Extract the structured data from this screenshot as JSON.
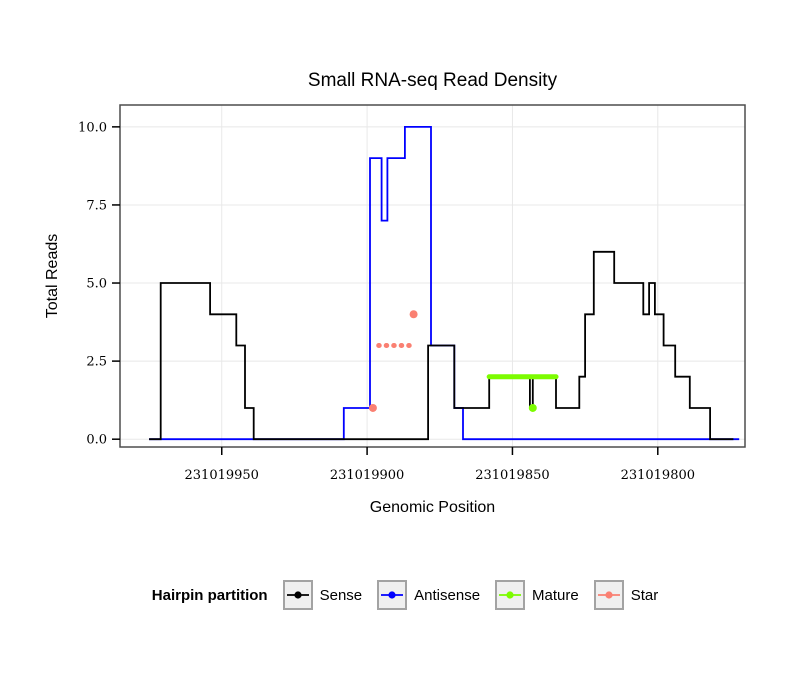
{
  "chart_data": {
    "type": "line",
    "title": "Small RNA-seq Read Density",
    "xlabel": "Genomic Position",
    "ylabel": "Total Reads",
    "x_axis_reversed": true,
    "xlim": [
      231019985,
      231019770
    ],
    "ylim": [
      -0.25,
      10.7
    ],
    "x_ticks": [
      231019950,
      231019900,
      231019850,
      231019800
    ],
    "x_tick_labels": [
      "231019950",
      "231019900",
      "231019850",
      "231019800"
    ],
    "y_ticks": [
      0.0,
      2.5,
      5.0,
      7.5,
      10.0
    ],
    "y_tick_labels": [
      "0.0",
      "2.5",
      "5.0",
      "7.5",
      "10.0"
    ],
    "grid": true,
    "legend_position": "bottom",
    "style": {
      "panel_fill": "#FFFFFF",
      "grid_color": "#E8E8E8",
      "panel_border": "#4D4D4D",
      "tick_color": "#000000"
    },
    "series": [
      {
        "name": "Antisense",
        "color": "#0000FF",
        "type": "step",
        "points": [
          [
            231019975,
            0
          ],
          [
            231019908,
            1
          ],
          [
            231019899,
            9
          ],
          [
            231019895,
            7
          ],
          [
            231019893,
            9
          ],
          [
            231019887,
            10
          ],
          [
            231019878,
            3
          ],
          [
            231019870,
            1
          ],
          [
            231019867,
            0
          ],
          [
            231019772,
            0
          ]
        ]
      },
      {
        "name": "Sense",
        "color": "#000000",
        "type": "step",
        "points": [
          [
            231019975,
            0
          ],
          [
            231019971,
            5
          ],
          [
            231019954,
            4
          ],
          [
            231019945,
            3
          ],
          [
            231019942,
            1
          ],
          [
            231019939,
            0
          ],
          [
            231019879,
            3
          ],
          [
            231019870,
            1
          ],
          [
            231019858,
            2
          ],
          [
            231019844,
            1
          ],
          [
            231019843,
            2
          ],
          [
            231019835,
            1
          ],
          [
            231019827,
            2
          ],
          [
            231019825,
            4
          ],
          [
            231019822,
            6
          ],
          [
            231019815,
            5
          ],
          [
            231019805,
            4
          ],
          [
            231019803,
            5
          ],
          [
            231019801,
            4
          ],
          [
            231019798,
            3
          ],
          [
            231019794,
            2
          ],
          [
            231019789,
            1
          ],
          [
            231019782,
            0
          ],
          [
            231019774,
            0
          ]
        ]
      },
      {
        "name": "Star",
        "color": "#FA8072",
        "type": "segment",
        "dashed": true,
        "segments": [
          {
            "y": 3,
            "from": 231019896,
            "to": 231019885
          }
        ],
        "points": [
          [
            231019898,
            1
          ],
          [
            231019884,
            4
          ]
        ]
      },
      {
        "name": "Mature",
        "color": "#7CFC00",
        "type": "segment",
        "dashed": false,
        "segments": [
          {
            "y": 2,
            "from": 231019858,
            "to": 231019835
          }
        ],
        "points": [
          [
            231019843,
            1
          ]
        ]
      }
    ]
  },
  "legend": {
    "title": "Hairpin partition",
    "items": [
      {
        "label": "Sense",
        "color": "#000000"
      },
      {
        "label": "Antisense",
        "color": "#0000FF"
      },
      {
        "label": "Mature",
        "color": "#7CFC00"
      },
      {
        "label": "Star",
        "color": "#FA8072"
      }
    ]
  }
}
